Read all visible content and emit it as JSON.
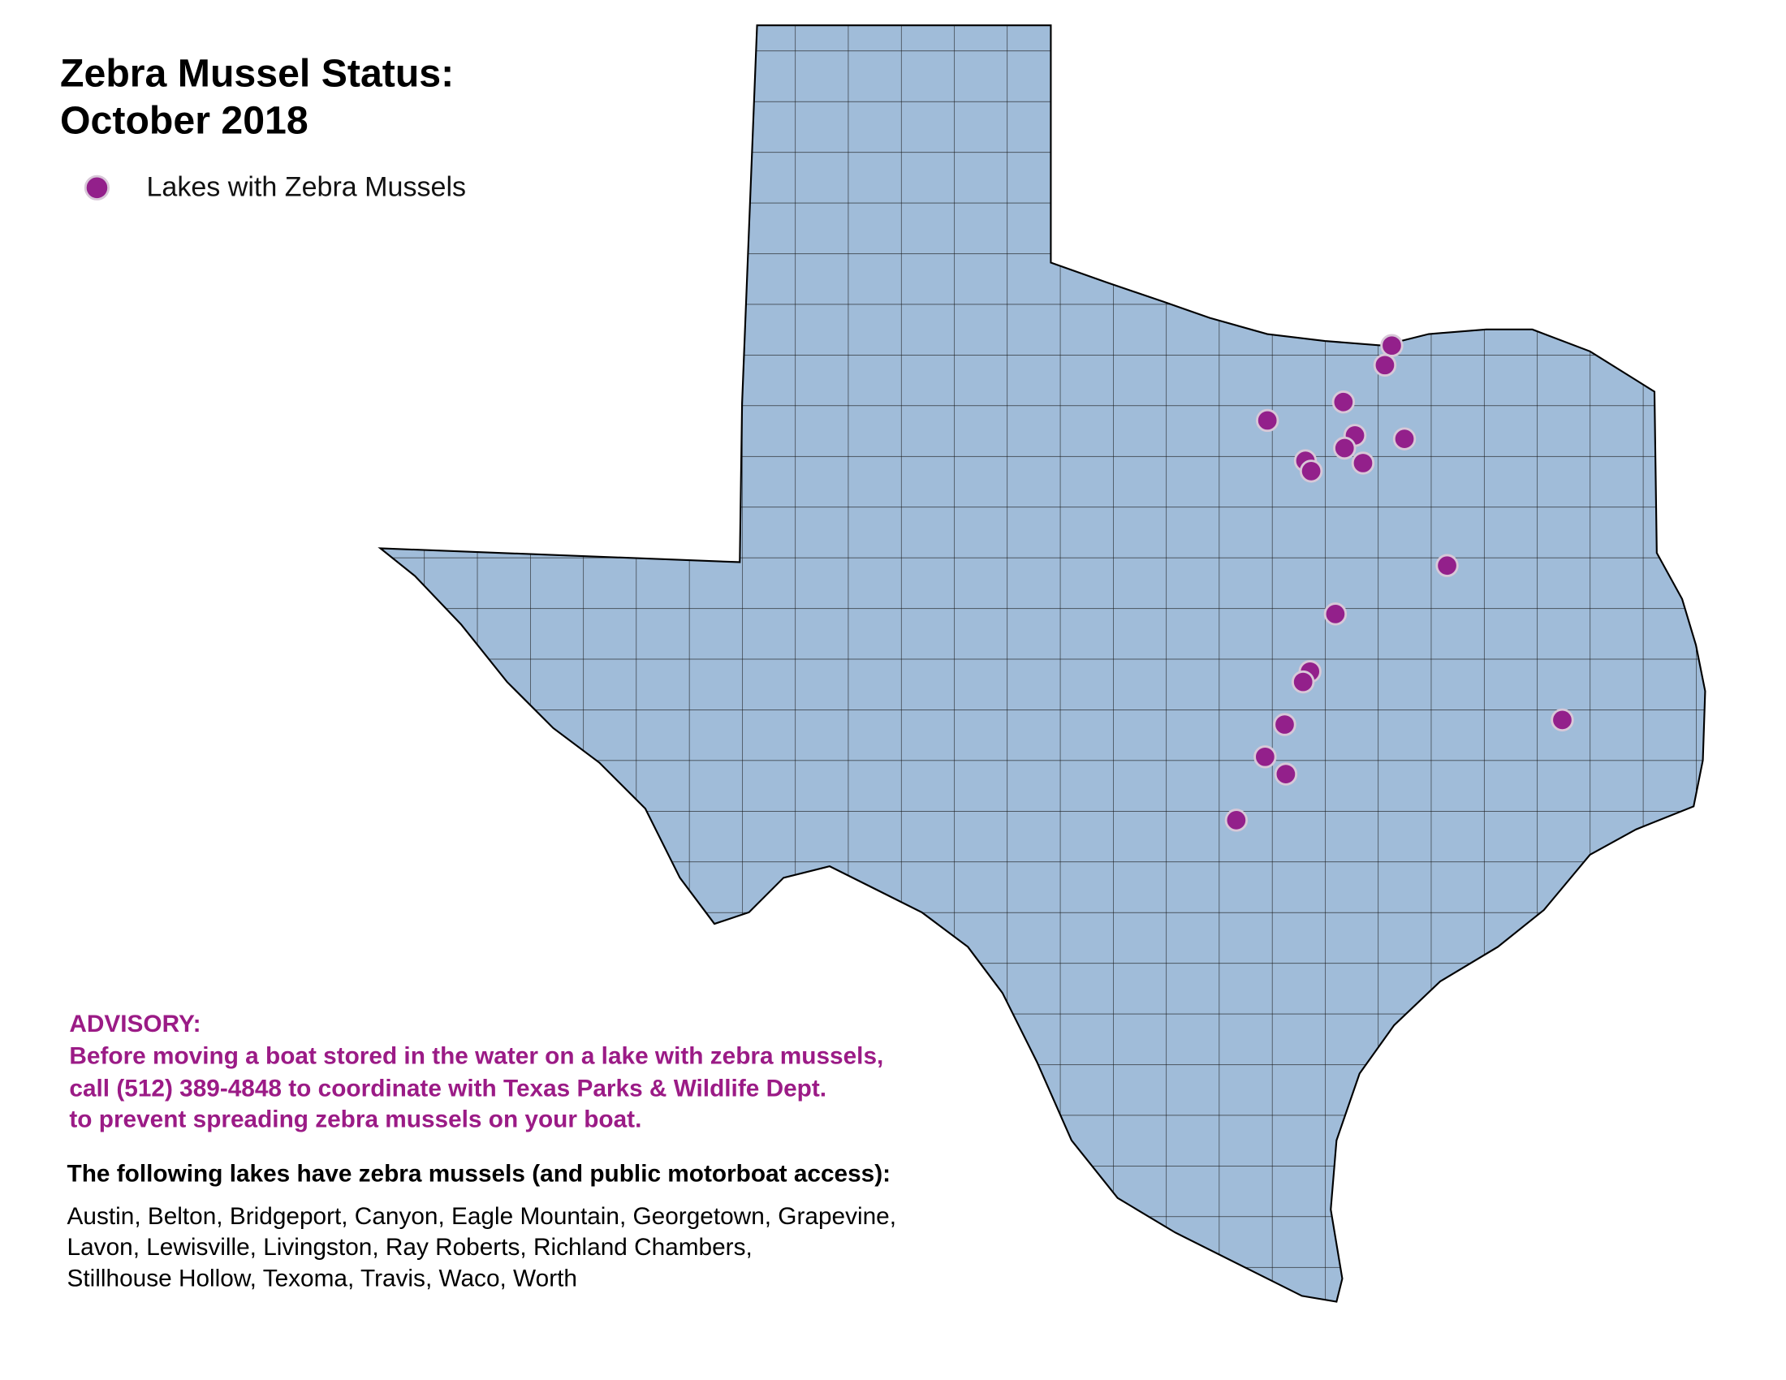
{
  "title": [
    "Zebra Mussel Status:",
    "October 2018"
  ],
  "legend": {
    "label": "Lakes with Zebra Mussels"
  },
  "advisory": {
    "heading": "ADVISORY:",
    "lines": [
      "Before moving a boat stored in the water on a lake with zebra mussels,",
      "call (512) 389-4848 to coordinate with Texas Parks & Wildlife Dept.",
      "to prevent spreading zebra mussels on your boat."
    ]
  },
  "lakes": {
    "heading": "The following lakes have zebra mussels (and public motorboat access):",
    "lines": [
      "Austin, Belton, Bridgeport, Canyon, Eagle Mountain, Georgetown, Grapevine,",
      "Lavon, Lewisville, Livingston, Ray Roberts, Richland Chambers,",
      "Stillhouse Hollow, Texoma, Travis, Waco, Worth"
    ]
  }
}
